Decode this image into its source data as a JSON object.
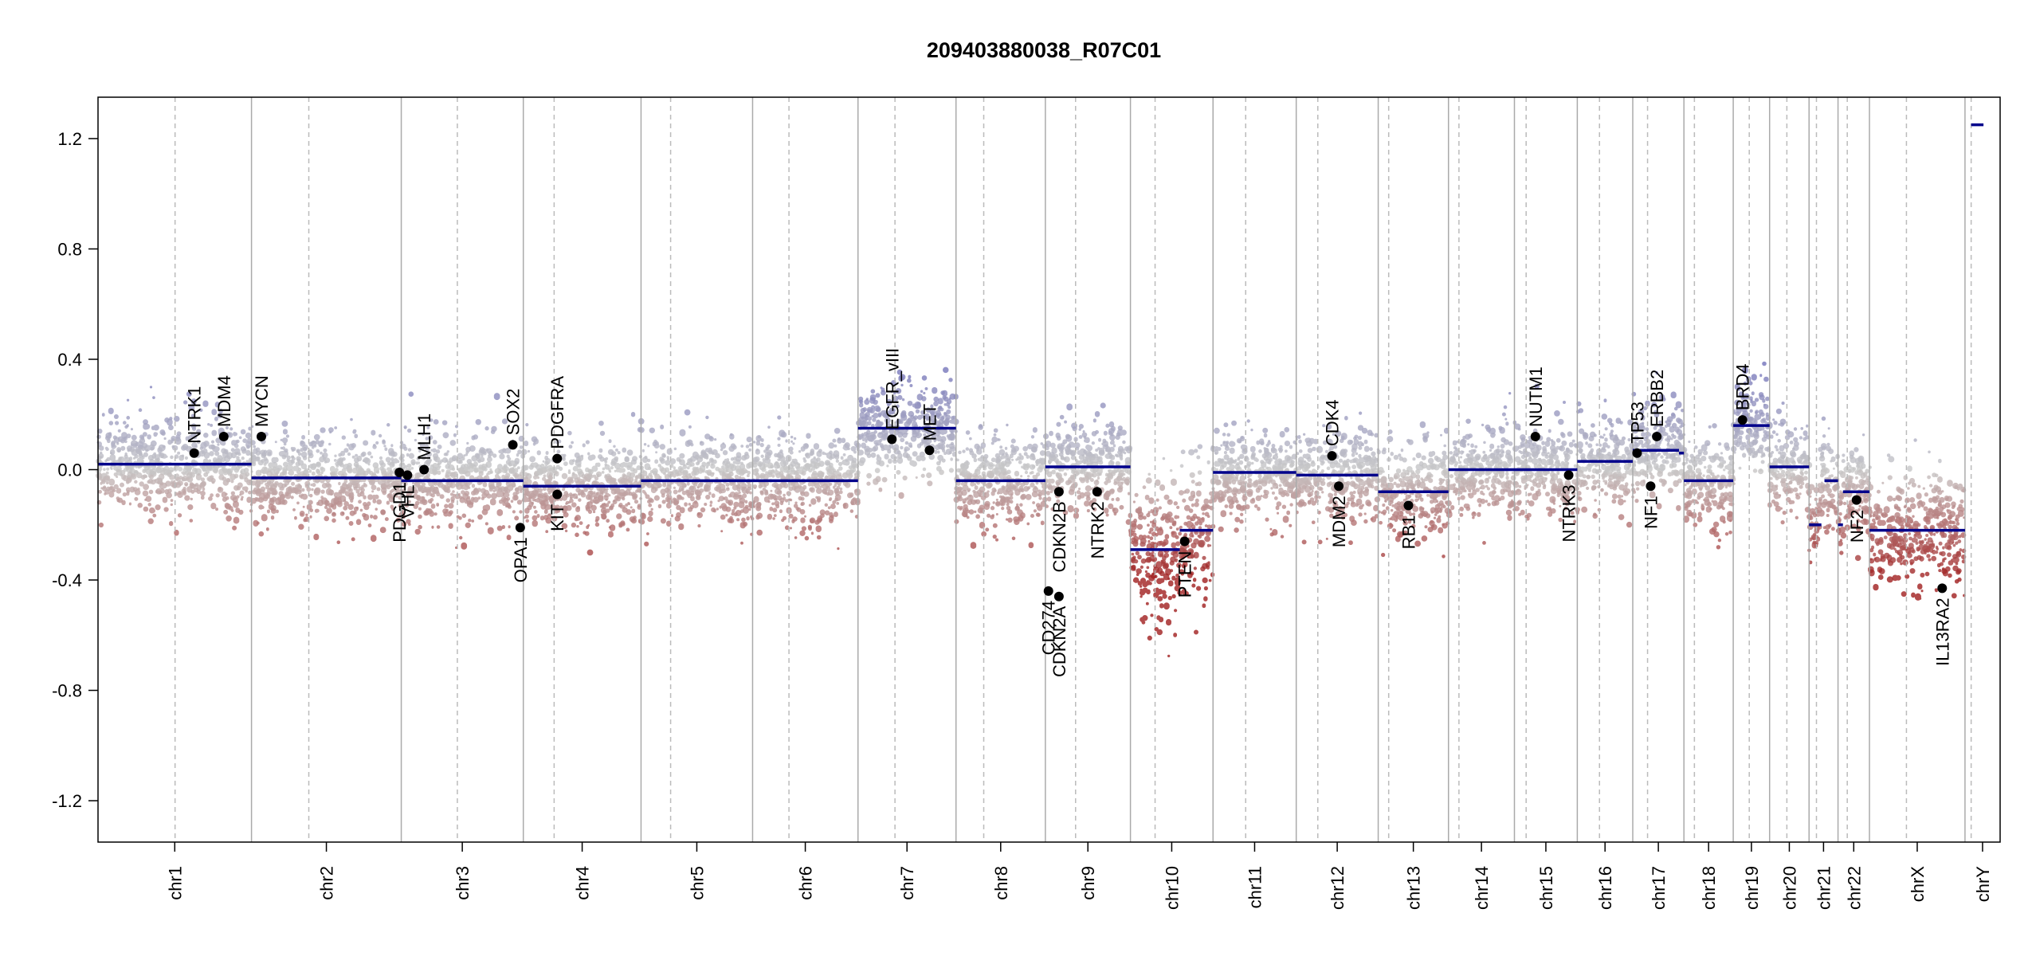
{
  "chart_data": {
    "type": "scatter",
    "title": "209403880038_R07C01",
    "xlabel": "",
    "ylabel": "",
    "ylim": [
      -1.35,
      1.35
    ],
    "yticks": [
      "1.2",
      "0.8",
      "0.4",
      "0.0",
      "-0.4",
      "-0.8",
      "-1.2"
    ],
    "ytick_values": [
      1.2,
      0.8,
      0.4,
      0.0,
      -0.4,
      -0.8,
      -1.2
    ],
    "grid": false,
    "legend": "none",
    "colors": {
      "segment": "#00008b",
      "gain_points": "#8c8cc4",
      "neutral_points": "#c8c8c8",
      "loss_points": "#a52a2a",
      "chrom_border": "#aaaaaa",
      "centromere": "#bbbbbb"
    },
    "chromosomes": [
      {
        "name": "chr1",
        "len": 249,
        "cen": 125
      },
      {
        "name": "chr2",
        "len": 243,
        "cen": 93
      },
      {
        "name": "chr3",
        "len": 198,
        "cen": 91
      },
      {
        "name": "chr4",
        "len": 191,
        "cen": 50
      },
      {
        "name": "chr5",
        "len": 181,
        "cen": 48
      },
      {
        "name": "chr6",
        "len": 171,
        "cen": 59
      },
      {
        "name": "chr7",
        "len": 159,
        "cen": 60
      },
      {
        "name": "chr8",
        "len": 145,
        "cen": 45
      },
      {
        "name": "chr9",
        "len": 138,
        "cen": 49
      },
      {
        "name": "chr10",
        "len": 134,
        "cen": 40
      },
      {
        "name": "chr11",
        "len": 135,
        "cen": 53
      },
      {
        "name": "chr12",
        "len": 133,
        "cen": 35
      },
      {
        "name": "chr13",
        "len": 114,
        "cen": 17
      },
      {
        "name": "chr14",
        "len": 107,
        "cen": 17
      },
      {
        "name": "chr15",
        "len": 102,
        "cen": 19
      },
      {
        "name": "chr16",
        "len": 90,
        "cen": 36
      },
      {
        "name": "chr17",
        "len": 83,
        "cen": 24
      },
      {
        "name": "chr18",
        "len": 80,
        "cen": 17
      },
      {
        "name": "chr19",
        "len": 59,
        "cen": 26
      },
      {
        "name": "chr20",
        "len": 64,
        "cen": 28
      },
      {
        "name": "chr21",
        "len": 47,
        "cen": 12
      },
      {
        "name": "chr22",
        "len": 51,
        "cen": 15
      },
      {
        "name": "chrX",
        "len": 155,
        "cen": 60
      },
      {
        "name": "chrY",
        "len": 57,
        "cen": 10
      }
    ],
    "segments": [
      {
        "chr": "chr1",
        "start": 0,
        "end": 249,
        "value": 0.02
      },
      {
        "chr": "chr2",
        "start": 0,
        "end": 243,
        "value": -0.03
      },
      {
        "chr": "chr3",
        "start": 0,
        "end": 198,
        "value": -0.04
      },
      {
        "chr": "chr4",
        "start": 0,
        "end": 191,
        "value": -0.06
      },
      {
        "chr": "chr5",
        "start": 0,
        "end": 181,
        "value": -0.04
      },
      {
        "chr": "chr6",
        "start": 0,
        "end": 171,
        "value": -0.04
      },
      {
        "chr": "chr7",
        "start": 0,
        "end": 159,
        "value": 0.15
      },
      {
        "chr": "chr8",
        "start": 0,
        "end": 145,
        "value": -0.04
      },
      {
        "chr": "chr9",
        "start": 0,
        "end": 138,
        "value": 0.01
      },
      {
        "chr": "chr10",
        "start": 0,
        "end": 80,
        "value": -0.29
      },
      {
        "chr": "chr10",
        "start": 80,
        "end": 134,
        "value": -0.22
      },
      {
        "chr": "chr11",
        "start": 0,
        "end": 135,
        "value": -0.01
      },
      {
        "chr": "chr12",
        "start": 0,
        "end": 133,
        "value": -0.02
      },
      {
        "chr": "chr13",
        "start": 0,
        "end": 114,
        "value": -0.08
      },
      {
        "chr": "chr14",
        "start": 0,
        "end": 107,
        "value": 0.0
      },
      {
        "chr": "chr15",
        "start": 0,
        "end": 102,
        "value": 0.0
      },
      {
        "chr": "chr16",
        "start": 0,
        "end": 90,
        "value": 0.03
      },
      {
        "chr": "chr17",
        "start": 0,
        "end": 75,
        "value": 0.07
      },
      {
        "chr": "chr17",
        "start": 75,
        "end": 83,
        "value": 0.06
      },
      {
        "chr": "chr18",
        "start": 0,
        "end": 80,
        "value": -0.04
      },
      {
        "chr": "chr19",
        "start": 0,
        "end": 59,
        "value": 0.16
      },
      {
        "chr": "chr20",
        "start": 0,
        "end": 64,
        "value": 0.01
      },
      {
        "chr": "chr21",
        "start": 0,
        "end": 20,
        "value": -0.2
      },
      {
        "chr": "chr21",
        "start": 25,
        "end": 47,
        "value": -0.04
      },
      {
        "chr": "chr22",
        "start": 0,
        "end": 8,
        "value": -0.2
      },
      {
        "chr": "chr22",
        "start": 8,
        "end": 51,
        "value": -0.08
      },
      {
        "chr": "chrX",
        "start": 0,
        "end": 155,
        "value": -0.22
      },
      {
        "chr": "chrY",
        "start": 10,
        "end": 30,
        "value": 1.25
      }
    ],
    "genes": [
      {
        "name": "NTRK1",
        "chr": "chr1",
        "pos": 156,
        "value": 0.06,
        "label": "above"
      },
      {
        "name": "MDM4",
        "chr": "chr1",
        "pos": 204,
        "value": 0.12,
        "label": "above"
      },
      {
        "name": "MYCN",
        "chr": "chr2",
        "pos": 16,
        "value": 0.12,
        "label": "above"
      },
      {
        "name": "PDGD1",
        "chr": "chr2",
        "pos": 240,
        "value": -0.01,
        "label": "below"
      },
      {
        "name": "VHL",
        "chr": "chr3",
        "pos": 10,
        "value": -0.02,
        "label": "below"
      },
      {
        "name": "MLH1",
        "chr": "chr3",
        "pos": 37,
        "value": 0.0,
        "label": "above"
      },
      {
        "name": "SOX2",
        "chr": "chr3",
        "pos": 181,
        "value": 0.09,
        "label": "above"
      },
      {
        "name": "OPA1",
        "chr": "chr3",
        "pos": 193,
        "value": -0.21,
        "label": "below"
      },
      {
        "name": "PDGFRA",
        "chr": "chr4",
        "pos": 55,
        "value": 0.04,
        "label": "above"
      },
      {
        "name": "KIT",
        "chr": "chr4",
        "pos": 55,
        "value": -0.09,
        "label": "below"
      },
      {
        "name": "EGFR_vIII",
        "chr": "chr7",
        "pos": 55,
        "value": 0.11,
        "label": "above"
      },
      {
        "name": "MET",
        "chr": "chr7",
        "pos": 116,
        "value": 0.07,
        "label": "above"
      },
      {
        "name": "CD274",
        "chr": "chr9",
        "pos": 5,
        "value": -0.44,
        "label": "below"
      },
      {
        "name": "CDKN2A",
        "chr": "chr9",
        "pos": 22,
        "value": -0.46,
        "label": "below"
      },
      {
        "name": "CDKN2B",
        "chr": "chr9",
        "pos": 22,
        "value": -0.08,
        "label": "below"
      },
      {
        "name": "NTRK2",
        "chr": "chr9",
        "pos": 84,
        "value": -0.08,
        "label": "below"
      },
      {
        "name": "PTEN",
        "chr": "chr10",
        "pos": 88,
        "value": -0.26,
        "label": "below"
      },
      {
        "name": "CDK4",
        "chr": "chr12",
        "pos": 58,
        "value": 0.05,
        "label": "above"
      },
      {
        "name": "MDM2",
        "chr": "chr12",
        "pos": 69,
        "value": -0.06,
        "label": "below"
      },
      {
        "name": "RB1",
        "chr": "chr13",
        "pos": 49,
        "value": -0.13,
        "label": "below"
      },
      {
        "name": "NUTM1",
        "chr": "chr15",
        "pos": 34,
        "value": 0.12,
        "label": "above"
      },
      {
        "name": "NTRK3",
        "chr": "chr15",
        "pos": 88,
        "value": -0.02,
        "label": "below"
      },
      {
        "name": "TP53",
        "chr": "chr17",
        "pos": 7,
        "value": 0.06,
        "label": "above"
      },
      {
        "name": "NF1",
        "chr": "chr17",
        "pos": 29,
        "value": -0.06,
        "label": "below"
      },
      {
        "name": "ERBB2",
        "chr": "chr17",
        "pos": 39,
        "value": 0.12,
        "label": "above"
      },
      {
        "name": "BRD4",
        "chr": "chr19",
        "pos": 15,
        "value": 0.18,
        "label": "above"
      },
      {
        "name": "NF2",
        "chr": "chr22",
        "pos": 30,
        "value": -0.11,
        "label": "below"
      },
      {
        "name": "IL13RA2",
        "chr": "chrX",
        "pos": 118,
        "value": -0.43,
        "label": "below"
      }
    ]
  }
}
